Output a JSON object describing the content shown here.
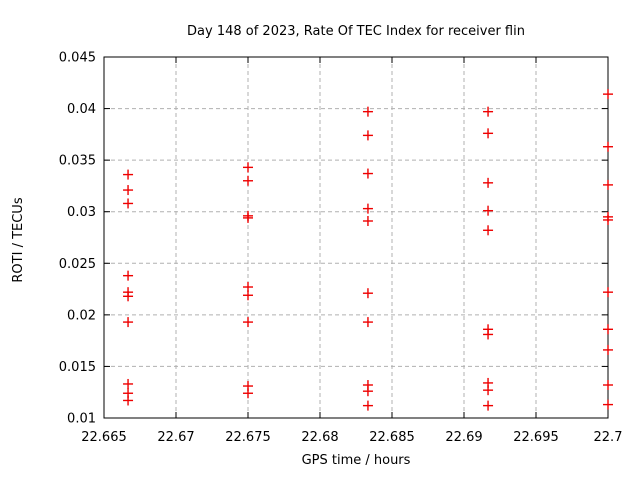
{
  "chart_data": {
    "type": "scatter",
    "title": "Day 148 of 2023, Rate Of TEC Index for receiver flin",
    "xlabel": "GPS time / hours",
    "ylabel": "ROTI / TECUs",
    "xlim": [
      22.665,
      22.7
    ],
    "ylim": [
      0.01,
      0.045
    ],
    "xticks": [
      {
        "value": 22.665,
        "label": "22.665"
      },
      {
        "value": 22.67,
        "label": "22.67"
      },
      {
        "value": 22.675,
        "label": "22.675"
      },
      {
        "value": 22.68,
        "label": "22.68"
      },
      {
        "value": 22.685,
        "label": "22.685"
      },
      {
        "value": 22.69,
        "label": "22.69"
      },
      {
        "value": 22.695,
        "label": "22.695"
      },
      {
        "value": 22.7,
        "label": "22.7"
      }
    ],
    "yticks": [
      {
        "value": 0.01,
        "label": "0.01"
      },
      {
        "value": 0.015,
        "label": "0.015"
      },
      {
        "value": 0.02,
        "label": "0.02"
      },
      {
        "value": 0.025,
        "label": "0.025"
      },
      {
        "value": 0.03,
        "label": "0.03"
      },
      {
        "value": 0.035,
        "label": "0.035"
      },
      {
        "value": 0.04,
        "label": "0.04"
      },
      {
        "value": 0.045,
        "label": "0.045"
      }
    ],
    "grid": true,
    "grid_style": "dashed",
    "grid_color": "#b0b0b0",
    "axis_color": "#000000",
    "background_color": "#ffffff",
    "legend": "none",
    "marker": {
      "symbol": "plus",
      "color": "#ee0000",
      "size": 10
    },
    "series": [
      {
        "name": "ROTI",
        "points": [
          [
            22.66667,
            0.0336
          ],
          [
            22.66667,
            0.0321
          ],
          [
            22.66667,
            0.0308
          ],
          [
            22.66667,
            0.0238
          ],
          [
            22.66667,
            0.0222
          ],
          [
            22.66667,
            0.0218
          ],
          [
            22.66667,
            0.0193
          ],
          [
            22.66667,
            0.0133
          ],
          [
            22.66667,
            0.0124
          ],
          [
            22.66667,
            0.0117
          ],
          [
            22.675,
            0.0343
          ],
          [
            22.675,
            0.033
          ],
          [
            22.675,
            0.0296
          ],
          [
            22.675,
            0.0294
          ],
          [
            22.675,
            0.0227
          ],
          [
            22.675,
            0.0219
          ],
          [
            22.675,
            0.0193
          ],
          [
            22.675,
            0.0131
          ],
          [
            22.675,
            0.0124
          ],
          [
            22.68333,
            0.0397
          ],
          [
            22.68333,
            0.0374
          ],
          [
            22.68333,
            0.0337
          ],
          [
            22.68333,
            0.0303
          ],
          [
            22.68333,
            0.0291
          ],
          [
            22.68333,
            0.0221
          ],
          [
            22.68333,
            0.0193
          ],
          [
            22.68333,
            0.0132
          ],
          [
            22.68333,
            0.0126
          ],
          [
            22.68333,
            0.0112
          ],
          [
            22.69167,
            0.0397
          ],
          [
            22.69167,
            0.0376
          ],
          [
            22.69167,
            0.0328
          ],
          [
            22.69167,
            0.0301
          ],
          [
            22.69167,
            0.0282
          ],
          [
            22.69167,
            0.0186
          ],
          [
            22.69167,
            0.0181
          ],
          [
            22.69167,
            0.0134
          ],
          [
            22.69167,
            0.0127
          ],
          [
            22.69167,
            0.0112
          ],
          [
            22.7,
            0.0414
          ],
          [
            22.7,
            0.0363
          ],
          [
            22.7,
            0.0326
          ],
          [
            22.7,
            0.0295
          ],
          [
            22.7,
            0.0292
          ],
          [
            22.7,
            0.0222
          ],
          [
            22.7,
            0.0186
          ],
          [
            22.7,
            0.0166
          ],
          [
            22.7,
            0.0132
          ],
          [
            22.7,
            0.0113
          ]
        ]
      }
    ]
  }
}
